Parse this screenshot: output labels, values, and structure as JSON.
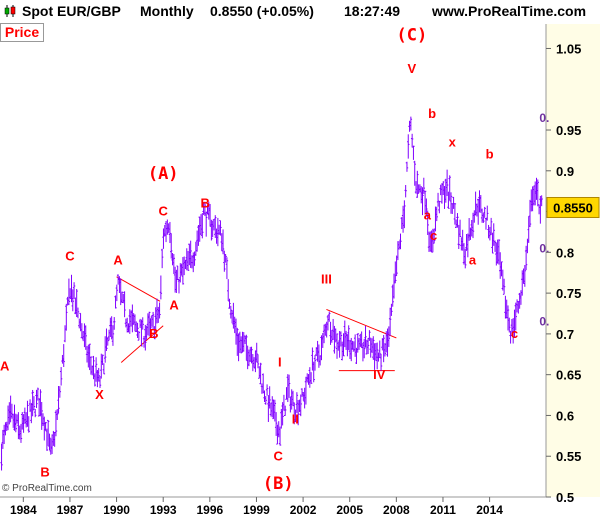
{
  "header": {
    "instrument": "Spot EUR/GBP",
    "period": "Monthly",
    "last_quote": "0.8550 (+0.05%)",
    "time": "18:27:49",
    "site": "www.ProRealTime.com"
  },
  "price_label": "Price",
  "copyright": "© ProRealTime.com",
  "colors": {
    "candles": "#8000ff",
    "wave_labels": "#ff0000",
    "fib_labels": "#7030a0",
    "price_axis_bg": "#fffde6",
    "current_price_bg": "#ffd700"
  },
  "chart_data": {
    "type": "line",
    "title": "Spot EUR/GBP Monthly",
    "current_price": "0.8550",
    "y_ticks": [
      "1.05",
      "0.95",
      "0.9",
      "0.85",
      "0.8",
      "0.75",
      "0.7",
      "0.65",
      "0.6",
      "0.55",
      "0.5"
    ],
    "x_ticks": [
      "1984",
      "1987",
      "1990",
      "1993",
      "1996",
      "1999",
      "2002",
      "2005",
      "2008",
      "2011",
      "2014"
    ],
    "ylim": [
      0.5,
      1.08
    ],
    "xlim": [
      1982.5,
      2017.5
    ],
    "series": [
      {
        "values": [
          [
            1982.6,
            0.56
          ],
          [
            1983.2,
            0.6
          ],
          [
            1983.8,
            0.58
          ],
          [
            1984.4,
            0.6
          ],
          [
            1985.0,
            0.62
          ],
          [
            1985.4,
            0.59
          ],
          [
            1985.8,
            0.55
          ],
          [
            1986.2,
            0.6
          ],
          [
            1986.6,
            0.68
          ],
          [
            1987.0,
            0.76
          ],
          [
            1987.6,
            0.72
          ],
          [
            1988.2,
            0.67
          ],
          [
            1988.6,
            0.65
          ],
          [
            1988.9,
            0.64
          ],
          [
            1989.3,
            0.68
          ],
          [
            1989.8,
            0.71
          ],
          [
            1990.1,
            0.76
          ],
          [
            1990.6,
            0.72
          ],
          [
            1991.2,
            0.71
          ],
          [
            1991.8,
            0.7
          ],
          [
            1992.4,
            0.71
          ],
          [
            1992.8,
            0.73
          ],
          [
            1993.0,
            0.82
          ],
          [
            1993.4,
            0.84
          ],
          [
            1993.8,
            0.76
          ],
          [
            1994.4,
            0.78
          ],
          [
            1995.0,
            0.8
          ],
          [
            1995.6,
            0.85
          ],
          [
            1996.3,
            0.83
          ],
          [
            1996.8,
            0.82
          ],
          [
            1997.3,
            0.74
          ],
          [
            1997.8,
            0.69
          ],
          [
            1998.5,
            0.68
          ],
          [
            1999.0,
            0.67
          ],
          [
            1999.5,
            0.63
          ],
          [
            2000.1,
            0.6
          ],
          [
            2000.5,
            0.58
          ],
          [
            2001.0,
            0.63
          ],
          [
            2001.5,
            0.61
          ],
          [
            2002.0,
            0.62
          ],
          [
            2002.6,
            0.66
          ],
          [
            2003.2,
            0.68
          ],
          [
            2003.6,
            0.72
          ],
          [
            2004.2,
            0.69
          ],
          [
            2005.0,
            0.69
          ],
          [
            2005.6,
            0.68
          ],
          [
            2006.3,
            0.69
          ],
          [
            2006.9,
            0.67
          ],
          [
            2007.5,
            0.69
          ],
          [
            2008.0,
            0.78
          ],
          [
            2008.5,
            0.85
          ],
          [
            2008.9,
            0.96
          ],
          [
            2009.3,
            0.88
          ],
          [
            2009.9,
            0.87
          ],
          [
            2010.2,
            0.8
          ],
          [
            2010.7,
            0.86
          ],
          [
            2011.2,
            0.88
          ],
          [
            2011.6,
            0.86
          ],
          [
            2012.0,
            0.83
          ],
          [
            2012.4,
            0.8
          ],
          [
            2012.9,
            0.84
          ],
          [
            2013.2,
            0.86
          ],
          [
            2013.8,
            0.84
          ],
          [
            2014.2,
            0.82
          ],
          [
            2014.6,
            0.79
          ],
          [
            2015.0,
            0.74
          ],
          [
            2015.4,
            0.7
          ],
          [
            2015.8,
            0.73
          ],
          [
            2016.3,
            0.78
          ],
          [
            2016.8,
            0.88
          ],
          [
            2017.2,
            0.86
          ],
          [
            2017.4,
            0.855
          ]
        ]
      }
    ],
    "wave_labels": [
      {
        "text": "A",
        "x": 1982.8,
        "y": 0.655
      },
      {
        "text": "B",
        "x": 1985.4,
        "y": 0.525
      },
      {
        "text": "C",
        "x": 1987.0,
        "y": 0.79
      },
      {
        "text": "X",
        "x": 1988.9,
        "y": 0.62
      },
      {
        "text": "A",
        "x": 1990.1,
        "y": 0.785
      },
      {
        "text": "B",
        "x": 1992.4,
        "y": 0.695
      },
      {
        "text": "(A)",
        "x": 1993.0,
        "y": 0.89
      },
      {
        "text": "C",
        "x": 1993.0,
        "y": 0.845
      },
      {
        "text": "A",
        "x": 1993.7,
        "y": 0.73
      },
      {
        "text": "B",
        "x": 1995.7,
        "y": 0.855
      },
      {
        "text": "C",
        "x": 2000.4,
        "y": 0.545
      },
      {
        "text": "(B)",
        "x": 2000.4,
        "y": 0.51
      },
      {
        "text": "I",
        "x": 2000.5,
        "y": 0.66
      },
      {
        "text": "II",
        "x": 2001.5,
        "y": 0.59
      },
      {
        "text": "III",
        "x": 2003.5,
        "y": 0.762
      },
      {
        "text": "IV",
        "x": 2006.9,
        "y": 0.645
      },
      {
        "text": "(C)",
        "x": 2009.0,
        "y": 1.06
      },
      {
        "text": "V",
        "x": 2009.0,
        "y": 1.02
      },
      {
        "text": "b",
        "x": 2010.3,
        "y": 0.965
      },
      {
        "text": "a",
        "x": 2010.0,
        "y": 0.84
      },
      {
        "text": "x",
        "x": 2011.6,
        "y": 0.93
      },
      {
        "text": "c",
        "x": 2010.4,
        "y": 0.815
      },
      {
        "text": "b",
        "x": 2014.0,
        "y": 0.915
      },
      {
        "text": "a",
        "x": 2012.9,
        "y": 0.785
      },
      {
        "text": "c",
        "x": 2015.6,
        "y": 0.695
      }
    ],
    "fib_labels": [
      {
        "text": "0.",
        "x": 2017.2,
        "y": 0.96
      },
      {
        "text": "0.",
        "x": 2017.2,
        "y": 0.8
      },
      {
        "text": "0.",
        "x": 2017.2,
        "y": 0.71
      }
    ],
    "trendlines": [
      {
        "from": [
          1990.0,
          0.77
        ],
        "to": [
          1992.8,
          0.74
        ]
      },
      {
        "from": [
          1990.3,
          0.665
        ],
        "to": [
          1993.0,
          0.71
        ]
      },
      {
        "from": [
          2003.5,
          0.73
        ],
        "to": [
          2008.0,
          0.695
        ]
      },
      {
        "from": [
          2004.3,
          0.655
        ],
        "to": [
          2007.9,
          0.655
        ]
      }
    ],
    "grid": false,
    "legend": "none"
  }
}
